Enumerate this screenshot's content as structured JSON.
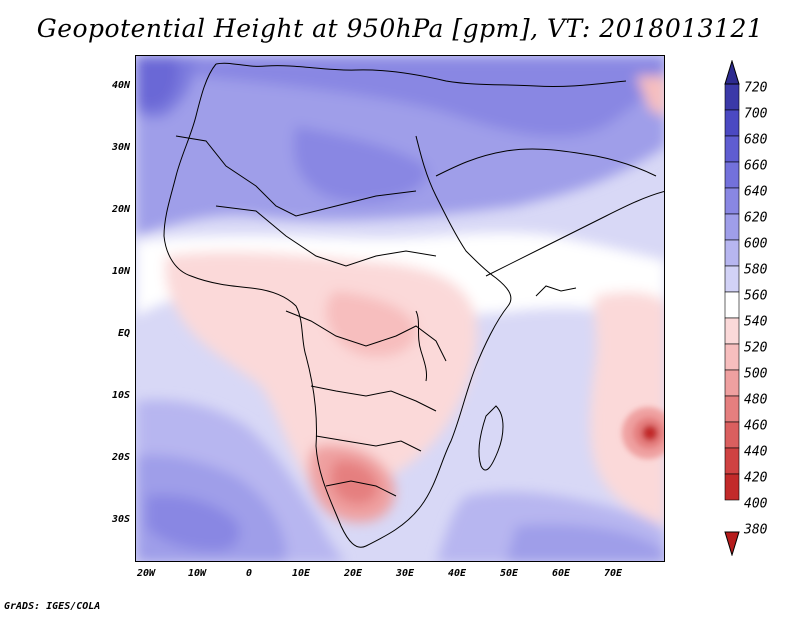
{
  "title": "Geopotential Height at 950hPa [gpm], VT: 2018013121",
  "footer": "GrADS: IGES/COLA",
  "map": {
    "lat_labels": [
      "40N",
      "30N",
      "20N",
      "10N",
      "EQ",
      "10S",
      "20S",
      "30S"
    ],
    "lon_labels": [
      "20W",
      "10W",
      "0",
      "10E",
      "20E",
      "30E",
      "40E",
      "50E",
      "60E",
      "70E"
    ]
  },
  "colorbar": {
    "levels": [
      "720",
      "700",
      "680",
      "660",
      "640",
      "620",
      "600",
      "580",
      "560",
      "540",
      "520",
      "500",
      "480",
      "460",
      "440",
      "420",
      "400",
      "380"
    ],
    "colors": [
      "#2d2b8f",
      "#3b39a8",
      "#4b49c2",
      "#5f5dd1",
      "#7371db",
      "#8987e3",
      "#9f9ee9",
      "#b7b6f0",
      "#d2d2f6",
      "#ffffff",
      "#fbd9d9",
      "#f7bebe",
      "#efa0a0",
      "#e57f7f",
      "#da5f5f",
      "#cf4242",
      "#c22a2a",
      "#b51c1c"
    ]
  }
}
